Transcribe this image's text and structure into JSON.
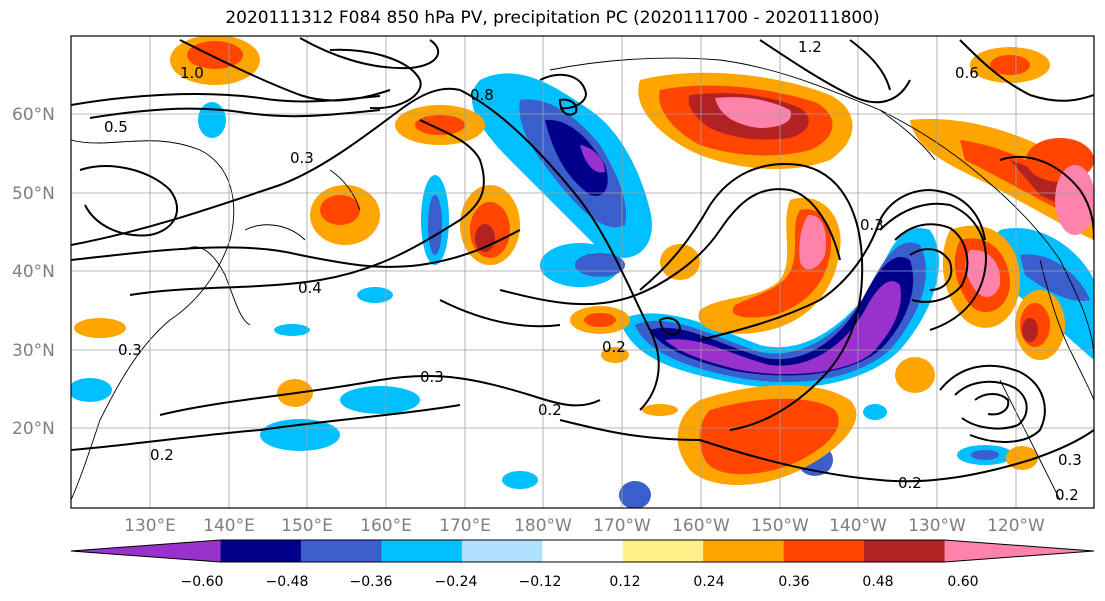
{
  "title": "2020111312 F084 850 hPa PV, precipitation PC (2020111700 - 2020111800)",
  "lat_labels": [
    "60°N",
    "50°N",
    "40°N",
    "30°N",
    "20°N"
  ],
  "lon_labels": [
    "130°E",
    "140°E",
    "150°E",
    "160°E",
    "170°E",
    "180°W",
    "170°W",
    "160°W",
    "150°W",
    "140°W",
    "130°W",
    "120°W"
  ],
  "colorbar": {
    "ticks": [
      "−0.60",
      "−0.48",
      "−0.36",
      "−0.24",
      "−0.12",
      "0.12",
      "0.24",
      "0.36",
      "0.48",
      "0.60"
    ],
    "colors": [
      "#9932cc",
      "#00008b",
      "#3a5fcd",
      "#00bfff",
      "#b0e2ff",
      "#ffffff",
      "#fff08a",
      "#ffa500",
      "#ff4500",
      "#b22222",
      "#ff82ab"
    ]
  },
  "contour_labels": [
    "0.5",
    "0.3",
    "0.3",
    "0.4",
    "0.3",
    "0.2",
    "0.2",
    "0.2",
    "0.8",
    "0.6",
    "0.3",
    "0.2",
    "0.3",
    "0.2",
    "1.2",
    "1.0"
  ]
}
